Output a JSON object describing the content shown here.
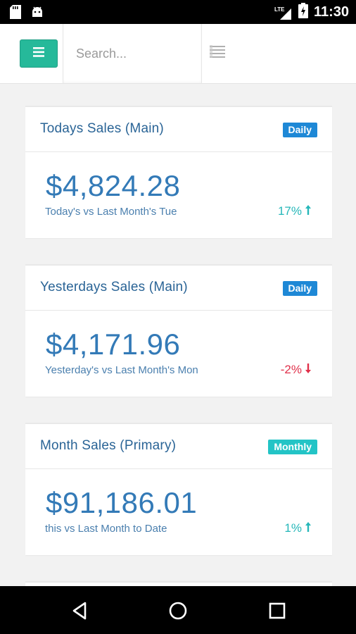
{
  "status_bar": {
    "time": "11:30",
    "network": "LTE",
    "icons": [
      "sd-card-icon",
      "android-debug-icon",
      "signal-icon",
      "battery-charging-icon"
    ]
  },
  "toolbar": {
    "menu_icon": "hamburger-icon",
    "search_placeholder": "Search...",
    "search_value": "",
    "view_toggle_icon": "list-view-icon"
  },
  "cards": [
    {
      "title": "Todays Sales (Main)",
      "badge": "Daily",
      "amount": "$4,824.28",
      "subtitle": "Today's vs Last Month's Tue",
      "change": "17%",
      "trend": "up"
    },
    {
      "title": "Yesterdays Sales (Main)",
      "badge": "Daily",
      "amount": "$4,171.96",
      "subtitle": "Yesterday's vs Last Month's Mon",
      "change": "-2%",
      "trend": "down"
    },
    {
      "title": "Month Sales (Primary)",
      "badge": "Monthly",
      "amount": "$91,186.01",
      "subtitle": "this vs Last Month to Date",
      "change": "1%",
      "trend": "up"
    }
  ],
  "colors": {
    "menu_button": "#26b99a",
    "title": "#2a6496",
    "amount": "#337ab7",
    "badge_daily": "#1e88d6",
    "badge_monthly": "#23c4c6",
    "trend_up": "#26b7b9",
    "trend_down": "#e0304a"
  },
  "nav_bar": {
    "buttons": [
      "back-icon",
      "home-icon",
      "recents-icon"
    ]
  }
}
